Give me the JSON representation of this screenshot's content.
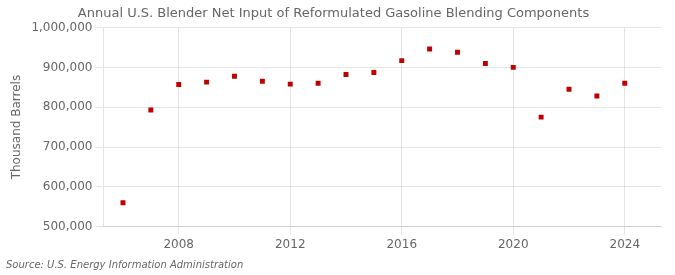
{
  "chart_data": {
    "type": "scatter",
    "title": "Annual U.S. Blender Net Input of Reformulated Gasoline Blending Components",
    "ylabel": "Thousand Barrels",
    "source": "Source: U.S. Energy Information Administration",
    "x": [
      2006,
      2007,
      2008,
      2009,
      2010,
      2011,
      2012,
      2013,
      2014,
      2015,
      2016,
      2017,
      2018,
      2019,
      2020,
      2021,
      2022,
      2023,
      2024
    ],
    "values": [
      560000,
      793000,
      857000,
      863000,
      878000,
      865000,
      858000,
      860000,
      882000,
      887000,
      917000,
      946000,
      938000,
      910000,
      900000,
      775000,
      845000,
      828000,
      860000
    ],
    "color": "#c00000",
    "marker": "square",
    "grid": true,
    "ylim": [
      500000,
      1000000
    ],
    "yticks": [
      {
        "value": 500000,
        "label": "500,000"
      },
      {
        "value": 600000,
        "label": "600,000"
      },
      {
        "value": 700000,
        "label": "700,000"
      },
      {
        "value": 800000,
        "label": "800,000"
      },
      {
        "value": 900000,
        "label": "900,000"
      },
      {
        "value": 1000000,
        "label": "1,000,000"
      }
    ],
    "xlim": [
      2005.3,
      2025.3
    ],
    "xticks": [
      2008,
      2012,
      2016,
      2020,
      2024
    ]
  }
}
